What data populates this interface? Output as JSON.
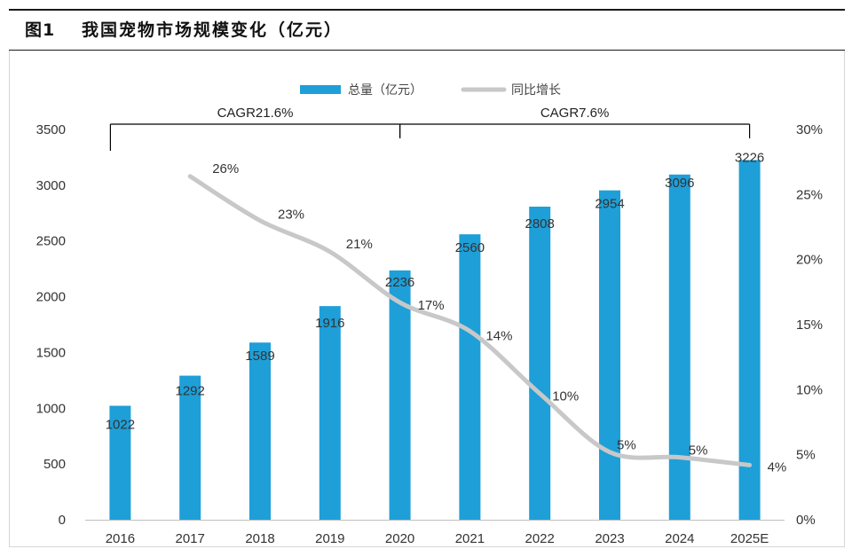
{
  "figure": {
    "label": "图1",
    "title": "我国宠物市场规模变化（亿元）"
  },
  "colors": {
    "bar": "#1e9fd8",
    "line": "#c8c8c8",
    "axis_text": "#333333",
    "label_text": "#333333",
    "bracket": "#000000"
  },
  "chart_data": {
    "type": "bar",
    "title": "我国宠物市场规模变化（亿元）",
    "categories": [
      "2016",
      "2017",
      "2018",
      "2019",
      "2020",
      "2021",
      "2022",
      "2023",
      "2024",
      "2025E"
    ],
    "series": [
      {
        "name": "总量（亿元）",
        "type": "bar",
        "axis": "left",
        "values": [
          1022,
          1292,
          1589,
          1916,
          2236,
          2560,
          2808,
          2954,
          3096,
          3226
        ],
        "labels": [
          "1022",
          "1292",
          "1589",
          "1916",
          "2236",
          "2560",
          "2808",
          "2954",
          "3096",
          "3226"
        ]
      },
      {
        "name": "同比增长",
        "type": "line",
        "axis": "right",
        "values": [
          null,
          26.4,
          23,
          20.6,
          16.7,
          14.5,
          9.7,
          5.2,
          4.8,
          4.2
        ],
        "labels": [
          null,
          "26%",
          "23%",
          "21%",
          "17%",
          "14%",
          "10%",
          "5%",
          "5%",
          "4%"
        ]
      }
    ],
    "y_left": {
      "min": 0,
      "max": 3500,
      "ticks": [
        "0",
        "500",
        "1000",
        "1500",
        "2000",
        "2500",
        "3000",
        "3500"
      ]
    },
    "y_right": {
      "min": 0,
      "max": 30,
      "ticks": [
        "0%",
        "5%",
        "10%",
        "15%",
        "20%",
        "25%",
        "30%"
      ]
    },
    "legend": {
      "position": "top",
      "entries": [
        "总量（亿元）",
        "同比增长"
      ]
    },
    "annotations": [
      {
        "text": "CAGR21.6%",
        "from_category": "2016",
        "to_category": "2020"
      },
      {
        "text": "CAGR7.6%",
        "from_category": "2020",
        "to_category": "2025E"
      }
    ]
  }
}
